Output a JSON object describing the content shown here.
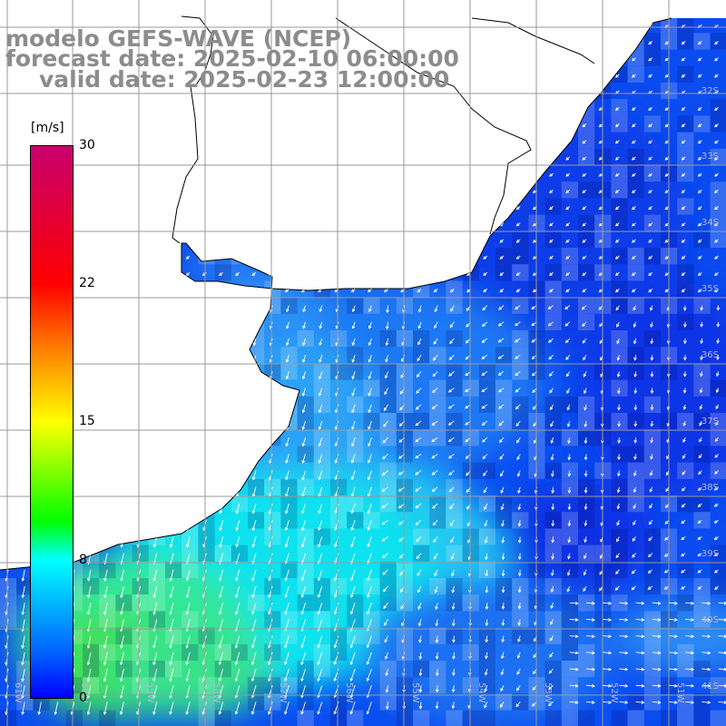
{
  "title": {
    "line1": "modelo GEFS-WAVE (NCEP)",
    "line2": "forecast date: 2025-02-10 06:00:00",
    "line3": "valid date: 2025-02-23 12:00:00"
  },
  "colorbar": {
    "unit": "[m/s]",
    "ticks": [
      "30",
      "22",
      "15",
      "8",
      "0"
    ],
    "range": [
      0,
      30
    ],
    "colors": [
      "#0000ff",
      "#0060ff",
      "#00ffff",
      "#00ff00",
      "#ffff00",
      "#ff8000",
      "#ff0000",
      "#c8006e"
    ]
  },
  "axes": {
    "lat_labels": [
      "32S",
      "33S",
      "34S",
      "35S",
      "36S",
      "37S",
      "38S",
      "39S",
      "40S",
      "41S"
    ],
    "lon_labels": [
      "61W",
      "60W",
      "59W",
      "58W",
      "57W",
      "56W",
      "55W",
      "54W",
      "53W",
      "52W",
      "51W"
    ]
  },
  "map": {
    "land_color": "#ffffff",
    "coast_color": "#000000",
    "grid_color": "#9a9a9a",
    "vector_color": "#ffffff",
    "field": "wind speed",
    "arrow_icon": "wind-arrow-icon"
  }
}
